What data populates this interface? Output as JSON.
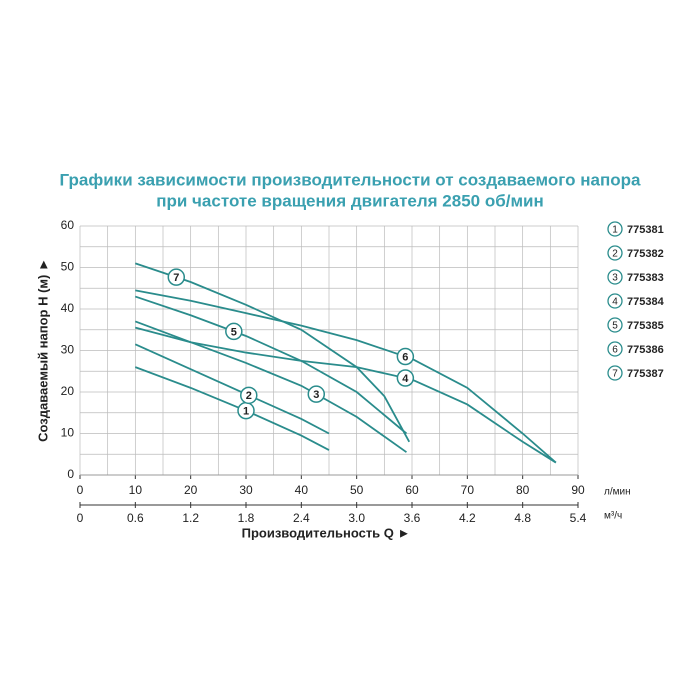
{
  "chart_data": {
    "type": "line",
    "title": "Графики зависимости производительности от создаваемого напора",
    "subtitle": "при частоте вращения двигателя 2850 об/мин",
    "x_label": "Производительность Q ►",
    "y_label": "Создаваемый напор Н (м) ►",
    "x_unit": "л/мин",
    "x2_unit": "м³/ч",
    "xlim": [
      0,
      90
    ],
    "xticks": [
      0,
      10,
      20,
      30,
      40,
      50,
      60,
      70,
      80,
      90
    ],
    "minor_xticks": [
      5,
      15,
      25,
      35,
      45,
      55,
      65,
      75,
      85
    ],
    "x2lim": [
      0,
      5.4
    ],
    "x2ticks": [
      0,
      0.6,
      1.2,
      1.8,
      2.4,
      {
        "value": 3,
        "label": "3.0"
      },
      3.6,
      4.2,
      4.8,
      5.4
    ],
    "ylim": [
      0,
      60
    ],
    "yticks": [
      0,
      10,
      20,
      30,
      40,
      50,
      60
    ],
    "minor_yticks": [
      5,
      15,
      25,
      35,
      45,
      55
    ],
    "grid": true,
    "series": [
      {
        "name": "775381",
        "label": "1",
        "color": "#2a8c8c",
        "x": [
          10,
          20,
          30,
          40,
          45
        ],
        "values": [
          26,
          21,
          15.5,
          9.5,
          6
        ]
      },
      {
        "name": "775382",
        "label": "2",
        "color": "#2a8c8c",
        "x": [
          10,
          20,
          30,
          40,
          45
        ],
        "values": [
          31.5,
          25.5,
          19.5,
          13.5,
          10
        ]
      },
      {
        "name": "775383",
        "label": "3",
        "color": "#2a8c8c",
        "x": [
          10,
          20,
          30,
          40,
          50,
          59
        ],
        "values": [
          37,
          32,
          27,
          21.5,
          14,
          5.5
        ]
      },
      {
        "name": "775384",
        "label": "4",
        "color": "#2a8c8c",
        "x": [
          10,
          20,
          30,
          40,
          50,
          60,
          70,
          80,
          86
        ],
        "values": [
          35.5,
          32,
          29.5,
          27.5,
          26,
          23,
          17,
          8,
          3
        ]
      },
      {
        "name": "775385",
        "label": "5",
        "color": "#2a8c8c",
        "x": [
          10,
          20,
          30,
          40,
          50,
          59
        ],
        "values": [
          43,
          38.5,
          33.5,
          27.5,
          20,
          10
        ]
      },
      {
        "name": "775386",
        "label": "6",
        "color": "#2a8c8c",
        "x": [
          10,
          20,
          30,
          40,
          50,
          60,
          70,
          80,
          86
        ],
        "values": [
          44.5,
          42,
          39,
          36,
          32.5,
          28,
          21,
          10,
          3
        ]
      },
      {
        "name": "775387",
        "label": "7",
        "color": "#2a8c8c",
        "x": [
          10,
          20,
          30,
          40,
          50,
          55,
          59.5
        ],
        "values": [
          51,
          46.5,
          41,
          35,
          26,
          19,
          8
        ]
      }
    ]
  }
}
